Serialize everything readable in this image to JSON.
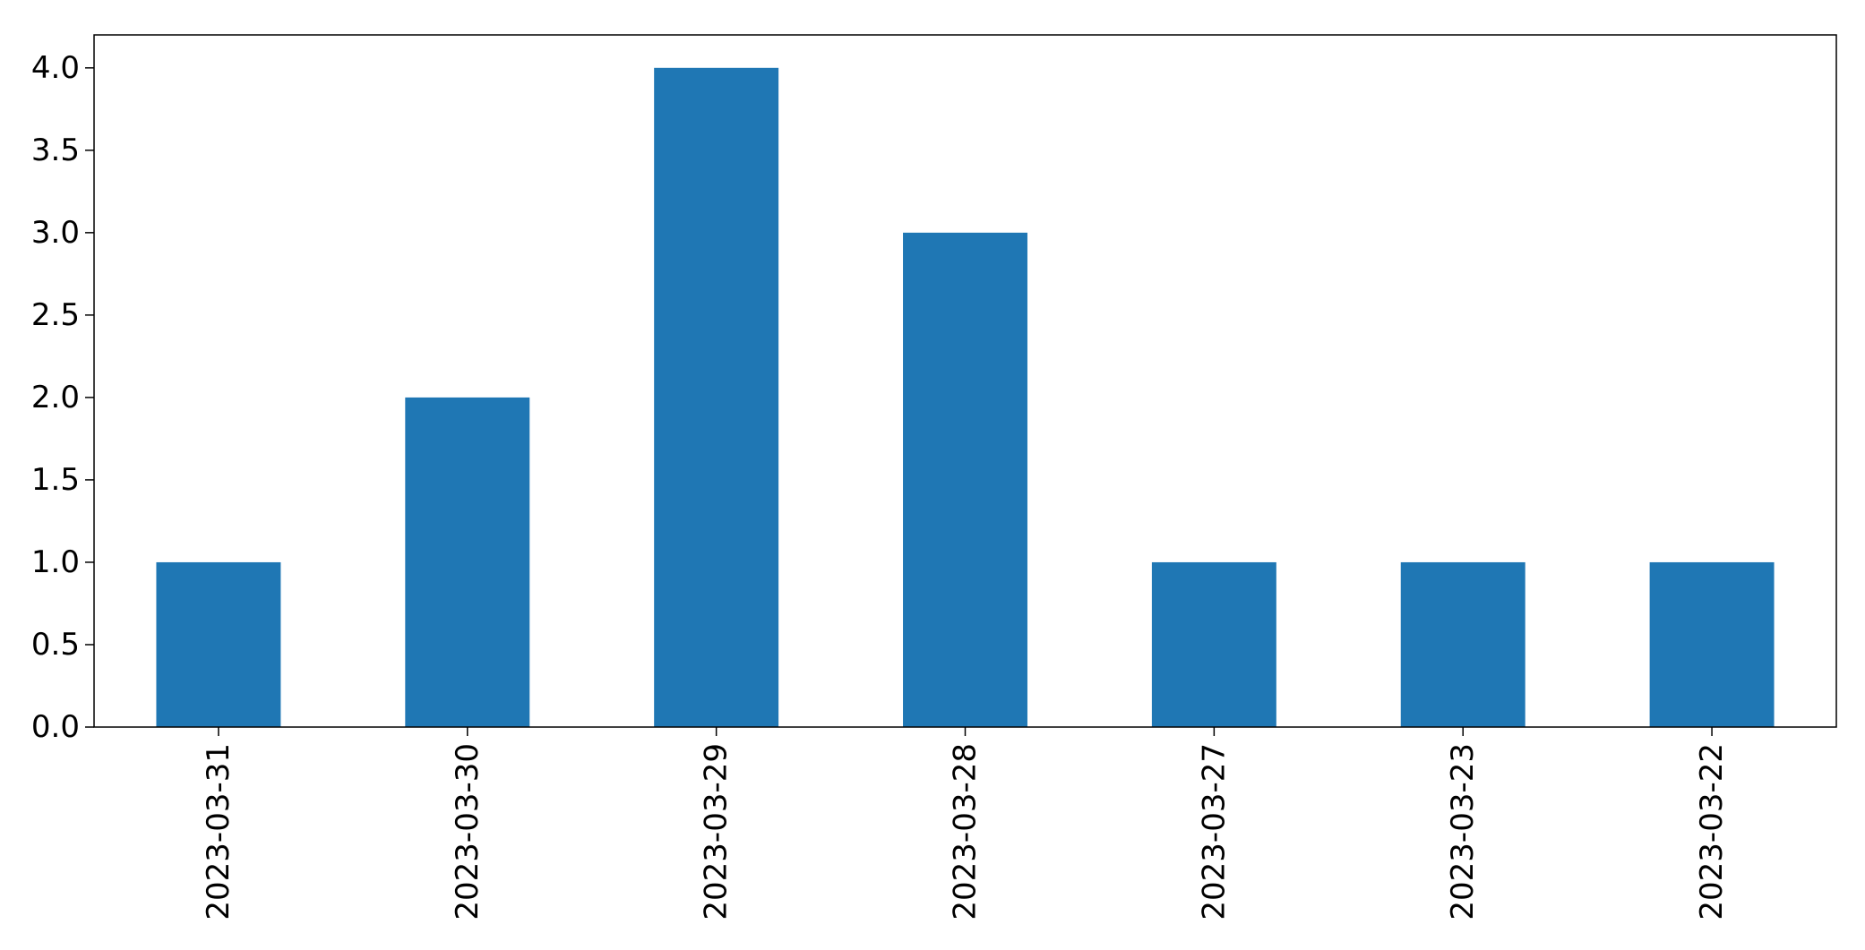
{
  "chart_data": {
    "type": "bar",
    "categories": [
      "2023-03-31",
      "2023-03-30",
      "2023-03-29",
      "2023-03-28",
      "2023-03-27",
      "2023-03-23",
      "2023-03-22"
    ],
    "values": [
      1,
      2,
      4,
      3,
      1,
      1,
      1
    ],
    "title": "",
    "xlabel": "",
    "ylabel": "",
    "ylim": [
      0,
      4.2
    ],
    "yticks": [
      "0.0",
      "0.5",
      "1.0",
      "1.5",
      "2.0",
      "2.5",
      "3.0",
      "3.5",
      "4.0"
    ],
    "grid": false,
    "bar_color": "#1f77b4",
    "axis_color": "#000000"
  }
}
